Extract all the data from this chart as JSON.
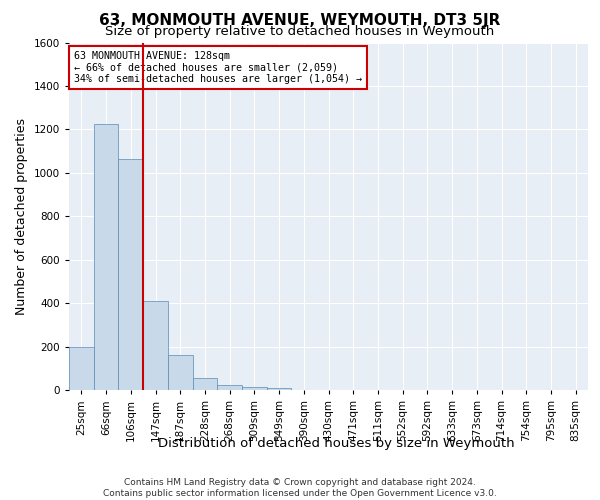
{
  "title": "63, MONMOUTH AVENUE, WEYMOUTH, DT3 5JR",
  "subtitle": "Size of property relative to detached houses in Weymouth",
  "xlabel": "Distribution of detached houses by size in Weymouth",
  "ylabel": "Number of detached properties",
  "categories": [
    "25sqm",
    "66sqm",
    "106sqm",
    "147sqm",
    "187sqm",
    "228sqm",
    "268sqm",
    "309sqm",
    "349sqm",
    "390sqm",
    "430sqm",
    "471sqm",
    "511sqm",
    "552sqm",
    "592sqm",
    "633sqm",
    "673sqm",
    "714sqm",
    "754sqm",
    "795sqm",
    "835sqm"
  ],
  "values": [
    200,
    1225,
    1065,
    410,
    160,
    55,
    25,
    15,
    10,
    0,
    0,
    0,
    0,
    0,
    0,
    0,
    0,
    0,
    0,
    0,
    0
  ],
  "bar_color": "#c8d9ea",
  "bar_edge_color": "#5a8ab5",
  "property_line_x": 2.5,
  "property_line_color": "#cc0000",
  "annotation_text": "63 MONMOUTH AVENUE: 128sqm\n← 66% of detached houses are smaller (2,059)\n34% of semi-detached houses are larger (1,054) →",
  "annotation_box_color": "#ffffff",
  "annotation_box_edge": "#cc0000",
  "ylim": [
    0,
    1600
  ],
  "yticks": [
    0,
    200,
    400,
    600,
    800,
    1000,
    1200,
    1400,
    1600
  ],
  "footer_line1": "Contains HM Land Registry data © Crown copyright and database right 2024.",
  "footer_line2": "Contains public sector information licensed under the Open Government Licence v3.0.",
  "background_color": "#e8eef5",
  "grid_color": "#ffffff",
  "title_fontsize": 11,
  "subtitle_fontsize": 9.5,
  "axis_label_fontsize": 9,
  "tick_fontsize": 7.5,
  "footer_fontsize": 6.5
}
